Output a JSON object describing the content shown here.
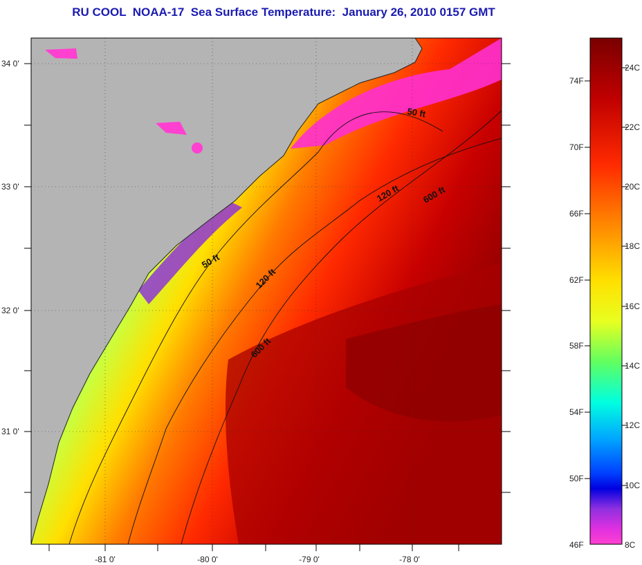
{
  "title": "RU COOL  NOAA-17  Sea Surface Temperature:  January 26, 2010 0157 GMT",
  "map": {
    "lat_labels": [
      "34 0'",
      "33 0'",
      "32 0'",
      "31 0'"
    ],
    "lon_labels": [
      "-81 0'",
      "-80 0'",
      "-79 0'",
      "-78 0'"
    ],
    "contours": [
      {
        "label": "50 ft",
        "id": "contour-50ft-north"
      },
      {
        "label": "50 ft",
        "id": "contour-50ft-south"
      },
      {
        "label": "120 ft",
        "id": "contour-120ft-north"
      },
      {
        "label": "120 ft",
        "id": "contour-120ft-south"
      },
      {
        "label": "600 ft",
        "id": "contour-600ft-north"
      },
      {
        "label": "600 ft",
        "id": "contour-600ft-south"
      }
    ],
    "land_color": "#b4b4b4"
  },
  "colorbar": {
    "fahrenheit_labels": [
      "74F",
      "70F",
      "66F",
      "62F",
      "58F",
      "54F",
      "50F",
      "46F"
    ],
    "celsius_labels": [
      "24C",
      "22C",
      "20C",
      "18C",
      "16C",
      "14C",
      "12C",
      "10C",
      "8C"
    ],
    "colors": [
      "#8b0000",
      "#d40000",
      "#ff3c00",
      "#ff8c00",
      "#ffd000",
      "#f5ff00",
      "#80ff40",
      "#00ffd0",
      "#00b0ff",
      "#0050ff",
      "#0000e0",
      "#8a2be2",
      "#ff30d0"
    ]
  }
}
